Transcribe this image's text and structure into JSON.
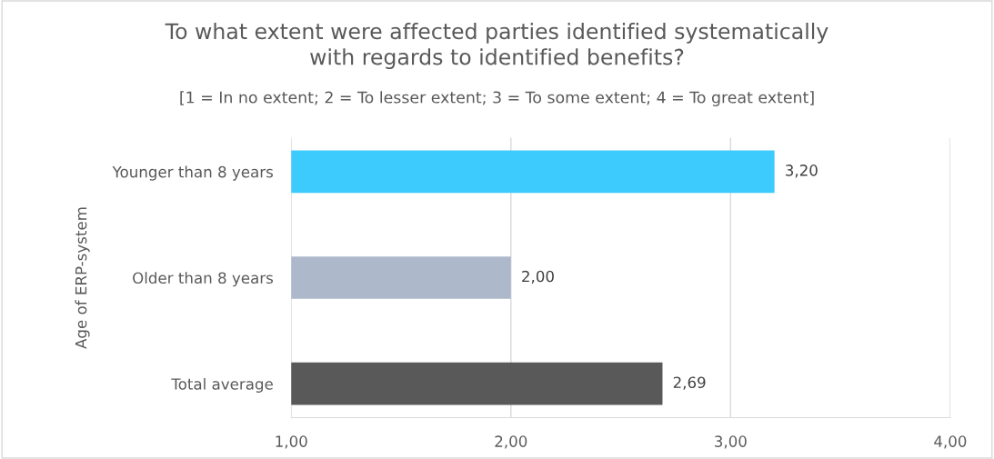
{
  "chart_data": {
    "type": "bar",
    "orientation": "horizontal",
    "title": "To what extent were affected parties identified systematically\nwith regards to identified benefits?",
    "subtitle": "[1 = In no extent; 2 = To lesser extent; 3 = To some extent; 4 = To great extent]",
    "ylabel": "Age of ERP-system",
    "categories": [
      "Younger than 8 years",
      "Older than 8 years",
      "Total average"
    ],
    "values": [
      3.2,
      2.0,
      2.69
    ],
    "colors": [
      "#3ccbfc",
      "#adb9ca",
      "#595959"
    ],
    "value_labels": [
      "3,20",
      "2,00",
      "2,69"
    ],
    "xlim": [
      1,
      4
    ],
    "xticks": [
      {
        "value": 1,
        "label": "1,00"
      },
      {
        "value": 2,
        "label": "2,00"
      },
      {
        "value": 3,
        "label": "3,00"
      },
      {
        "value": 4,
        "label": "4,00"
      }
    ],
    "grid": "x",
    "legend": false
  }
}
